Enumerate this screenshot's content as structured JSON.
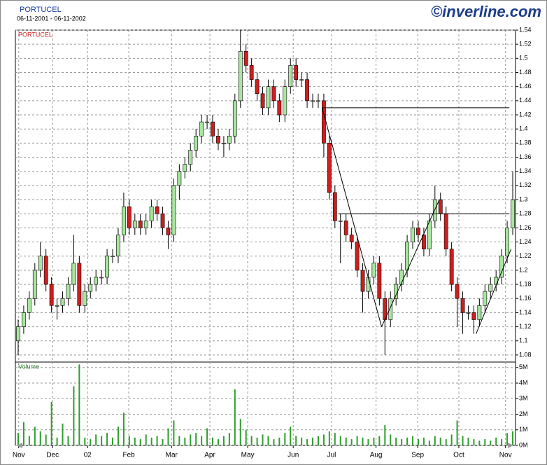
{
  "chart_data": [
    {
      "type": "candlestick",
      "title": "PORTUCEL",
      "subtitle": "06-11-2001 - 06-11-2002",
      "logo": "©inverline.com",
      "annotation": "PORTUCEL",
      "up_color": "#a8e6a0",
      "down_color": "#cc1f1f",
      "grid": true,
      "xlim": [
        -0.5,
        89.5
      ],
      "xticks": [
        {
          "value": 0.1,
          "label": "Nov"
        },
        {
          "value": 6.2,
          "label": "Dec"
        },
        {
          "value": 12.5,
          "label": "02"
        },
        {
          "value": 19.9,
          "label": "Feb"
        },
        {
          "value": 27.6,
          "label": "Mar"
        },
        {
          "value": 34.5,
          "label": "Apr"
        },
        {
          "value": 41.3,
          "label": "May"
        },
        {
          "value": 49.5,
          "label": "Jun"
        },
        {
          "value": 56.4,
          "label": "Jul"
        },
        {
          "value": 64.4,
          "label": "Aug"
        },
        {
          "value": 71.9,
          "label": "Sep"
        },
        {
          "value": 79.3,
          "label": "Oct"
        },
        {
          "value": 87.7,
          "label": "Nov"
        }
      ],
      "ylim": [
        1.07,
        1.54
      ],
      "yticks": [
        1.08,
        1.1,
        1.12,
        1.14,
        1.16,
        1.18,
        1.2,
        1.22,
        1.24,
        1.26,
        1.28,
        1.3,
        1.32,
        1.34,
        1.36,
        1.38,
        1.4,
        1.42,
        1.44,
        1.46,
        1.48,
        1.5,
        1.52,
        1.54
      ],
      "open": [
        1.1,
        1.12,
        1.14,
        1.16,
        1.2,
        1.22,
        1.18,
        1.15,
        1.15,
        1.16,
        1.18,
        1.21,
        1.15,
        1.17,
        1.18,
        1.19,
        1.19,
        1.22,
        1.22,
        1.25,
        1.29,
        1.26,
        1.27,
        1.26,
        1.27,
        1.29,
        1.28,
        1.26,
        1.25,
        1.32,
        1.34,
        1.35,
        1.37,
        1.39,
        1.41,
        1.41,
        1.39,
        1.38,
        1.38,
        1.39,
        1.44,
        1.51,
        1.49,
        1.47,
        1.45,
        1.43,
        1.46,
        1.44,
        1.42,
        1.46,
        1.49,
        1.47,
        1.47,
        1.44,
        1.44,
        1.44,
        1.38,
        1.31,
        1.27,
        1.27,
        1.25,
        1.24,
        1.2,
        1.17,
        1.19,
        1.21,
        1.16,
        1.13,
        1.16,
        1.18,
        1.2,
        1.24,
        1.26,
        1.25,
        1.23,
        1.27,
        1.3,
        1.28,
        1.23,
        1.18,
        1.16,
        1.14,
        1.14,
        1.13,
        1.15,
        1.17,
        1.18,
        1.19,
        1.22,
        1.26
      ],
      "high": [
        1.13,
        1.15,
        1.17,
        1.21,
        1.24,
        1.23,
        1.19,
        1.16,
        1.17,
        1.19,
        1.25,
        1.22,
        1.18,
        1.19,
        1.2,
        1.2,
        1.23,
        1.23,
        1.26,
        1.31,
        1.3,
        1.28,
        1.28,
        1.28,
        1.3,
        1.3,
        1.29,
        1.27,
        1.33,
        1.35,
        1.36,
        1.38,
        1.4,
        1.42,
        1.42,
        1.42,
        1.4,
        1.39,
        1.4,
        1.45,
        1.54,
        1.52,
        1.5,
        1.48,
        1.46,
        1.47,
        1.47,
        1.45,
        1.47,
        1.5,
        1.5,
        1.48,
        1.48,
        1.45,
        1.45,
        1.45,
        1.39,
        1.32,
        1.28,
        1.28,
        1.26,
        1.25,
        1.21,
        1.2,
        1.22,
        1.22,
        1.17,
        1.17,
        1.19,
        1.21,
        1.25,
        1.27,
        1.27,
        1.26,
        1.28,
        1.32,
        1.31,
        1.29,
        1.24,
        1.19,
        1.17,
        1.15,
        1.15,
        1.16,
        1.18,
        1.19,
        1.2,
        1.23,
        1.27,
        1.34
      ],
      "low": [
        1.08,
        1.11,
        1.13,
        1.15,
        1.19,
        1.17,
        1.14,
        1.13,
        1.14,
        1.15,
        1.17,
        1.14,
        1.14,
        1.16,
        1.17,
        1.18,
        1.18,
        1.21,
        1.21,
        1.24,
        1.25,
        1.25,
        1.25,
        1.25,
        1.26,
        1.27,
        1.25,
        1.23,
        1.24,
        1.3,
        1.33,
        1.34,
        1.36,
        1.38,
        1.4,
        1.38,
        1.37,
        1.36,
        1.37,
        1.38,
        1.43,
        1.48,
        1.46,
        1.44,
        1.42,
        1.42,
        1.43,
        1.41,
        1.41,
        1.45,
        1.46,
        1.46,
        1.43,
        1.43,
        1.43,
        1.36,
        1.3,
        1.26,
        1.21,
        1.24,
        1.23,
        1.19,
        1.14,
        1.16,
        1.18,
        1.15,
        1.08,
        1.12,
        1.15,
        1.17,
        1.19,
        1.23,
        1.24,
        1.22,
        1.22,
        1.26,
        1.27,
        1.22,
        1.17,
        1.12,
        1.11,
        1.13,
        1.11,
        1.12,
        1.14,
        1.16,
        1.17,
        1.18,
        1.21,
        1.25
      ],
      "close": [
        1.12,
        1.14,
        1.16,
        1.2,
        1.22,
        1.18,
        1.15,
        1.15,
        1.16,
        1.18,
        1.21,
        1.15,
        1.17,
        1.18,
        1.19,
        1.19,
        1.22,
        1.22,
        1.25,
        1.29,
        1.26,
        1.27,
        1.26,
        1.27,
        1.29,
        1.28,
        1.26,
        1.25,
        1.32,
        1.34,
        1.35,
        1.37,
        1.39,
        1.41,
        1.41,
        1.39,
        1.38,
        1.38,
        1.39,
        1.44,
        1.51,
        1.49,
        1.47,
        1.45,
        1.43,
        1.46,
        1.44,
        1.42,
        1.46,
        1.49,
        1.47,
        1.47,
        1.44,
        1.44,
        1.44,
        1.38,
        1.31,
        1.27,
        1.27,
        1.25,
        1.24,
        1.2,
        1.17,
        1.19,
        1.21,
        1.16,
        1.13,
        1.16,
        1.18,
        1.2,
        1.24,
        1.26,
        1.25,
        1.23,
        1.27,
        1.3,
        1.28,
        1.23,
        1.18,
        1.16,
        1.14,
        1.14,
        1.13,
        1.15,
        1.17,
        1.18,
        1.19,
        1.22,
        1.26,
        1.3
      ],
      "trendlines": [
        {
          "x": [
            54.7,
            88.4
          ],
          "y": [
            1.43,
            1.43
          ]
        },
        {
          "x": [
            57.6,
            88.4
          ],
          "y": [
            1.28,
            1.28
          ]
        },
        {
          "x": [
            54.7,
            65.4
          ],
          "y": [
            1.43,
            1.12
          ]
        },
        {
          "x": [
            65.4,
            75.8
          ],
          "y": [
            1.12,
            1.3
          ]
        },
        {
          "x": [
            82.4,
            88.7
          ],
          "y": [
            1.11,
            1.23
          ]
        }
      ]
    },
    {
      "type": "bar",
      "title": "Volume",
      "color": "#2e9e2e",
      "grid": true,
      "ylim": [
        0,
        5.35
      ],
      "yticks": [
        {
          "value": 0,
          "label": "0M"
        },
        {
          "value": 1,
          "label": "1M"
        },
        {
          "value": 2,
          "label": "2M"
        },
        {
          "value": 3,
          "label": "3M"
        },
        {
          "value": 4,
          "label": "4M"
        },
        {
          "value": 5,
          "label": "5M"
        }
      ],
      "values": [
        0.8,
        1.5,
        0.6,
        1.2,
        0.9,
        0.7,
        2.8,
        0.5,
        1.4,
        0.6,
        3.8,
        5.2,
        0.5,
        0.4,
        0.7,
        0.6,
        0.8,
        0.5,
        1.2,
        2.1,
        0.6,
        0.5,
        0.4,
        0.7,
        0.5,
        0.6,
        0.4,
        1.1,
        1.6,
        0.6,
        0.5,
        0.7,
        0.8,
        0.6,
        1.1,
        0.5,
        0.4,
        0.6,
        0.8,
        3.6,
        1.7,
        1.0,
        0.6,
        0.5,
        0.7,
        0.6,
        0.4,
        0.5,
        0.8,
        1.2,
        0.6,
        0.5,
        0.4,
        0.5,
        0.6,
        0.7,
        0.9,
        0.8,
        0.6,
        0.5,
        0.4,
        0.6,
        0.5,
        0.4,
        0.5,
        0.6,
        1.3,
        0.7,
        0.5,
        0.4,
        0.5,
        0.6,
        0.4,
        0.5,
        0.3,
        0.6,
        0.5,
        0.4,
        0.7,
        1.6,
        0.6,
        0.5,
        0.4,
        0.3,
        0.4,
        0.3,
        0.5,
        0.4,
        0.8,
        0.9
      ]
    }
  ]
}
